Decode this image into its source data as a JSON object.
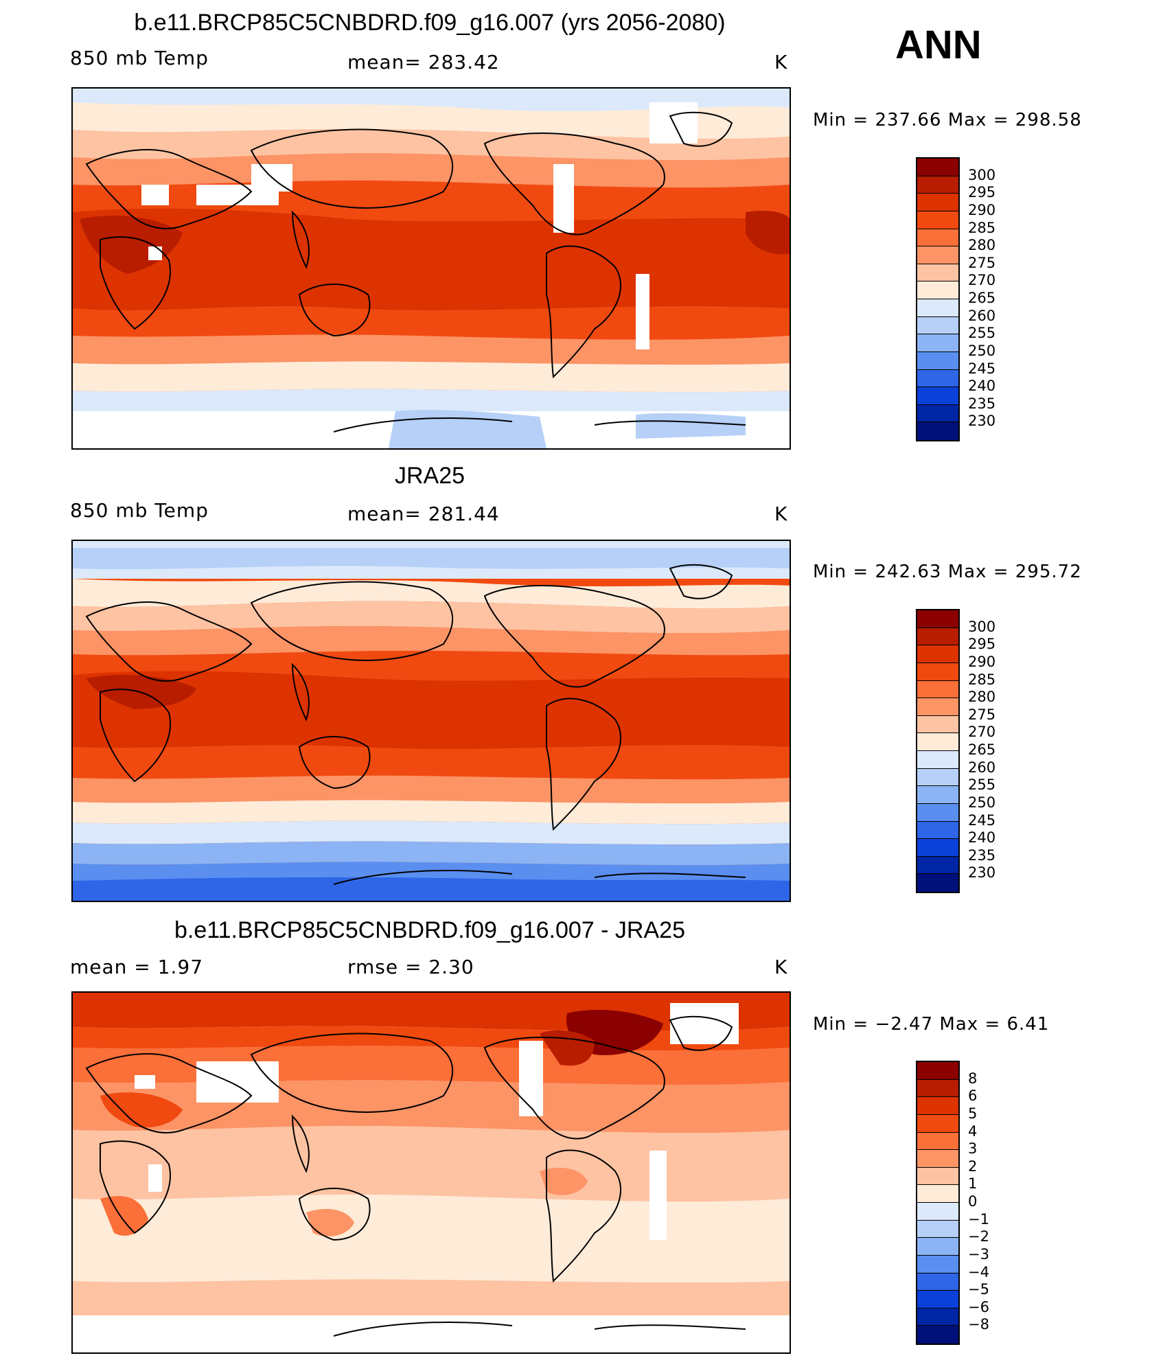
{
  "header": {
    "season": "ANN"
  },
  "panels": [
    {
      "title": "b.e11.BRCP85C5CNBDRD.f09_g16.007 (yrs 2056-2080)",
      "left_label": "850 mb Temp",
      "center_label": "mean=  283.42",
      "units": "K",
      "minmax": "Min  =  237.66  Max  =  298.58",
      "colorbar": "abs"
    },
    {
      "title": "JRA25",
      "left_label": "850 mb Temp",
      "center_label": "mean=  281.44",
      "units": "K",
      "minmax": "Min  =  242.63  Max  =  295.72",
      "colorbar": "abs"
    },
    {
      "title": "b.e11.BRCP85C5CNBDRD.f09_g16.007 - JRA25",
      "left_label": "mean  =     1.97",
      "center_label": "rmse  =     2.30",
      "units": "K",
      "minmax": "Min  =    −2.47  Max  =     6.41",
      "colorbar": "diff"
    }
  ],
  "colorbars": {
    "abs": {
      "labels": [
        "300",
        "295",
        "290",
        "285",
        "280",
        "275",
        "270",
        "265",
        "260",
        "255",
        "250",
        "245",
        "240",
        "235",
        "230"
      ],
      "colors": [
        "#8b0000",
        "#b81d00",
        "#dd3300",
        "#f04a10",
        "#fb6f38",
        "#fc9466",
        "#fdc3a3",
        "#feebd8",
        "#dbe9fb",
        "#b6d0f7",
        "#8cb4f4",
        "#5a8ff0",
        "#2f66e8",
        "#0b41d8",
        "#0026a6",
        "#00107a"
      ]
    },
    "diff": {
      "labels": [
        "8",
        "6",
        "5",
        "4",
        "3",
        "2",
        "1",
        "0",
        "−1",
        "−2",
        "−3",
        "−4",
        "−5",
        "−6",
        "−8"
      ],
      "colors": [
        "#8b0000",
        "#b81d00",
        "#dd3300",
        "#f04a10",
        "#fb6f38",
        "#fc9466",
        "#fdc3a3",
        "#feebd8",
        "#dbe9fb",
        "#b6d0f7",
        "#8cb4f4",
        "#5a8ff0",
        "#2f66e8",
        "#0b41d8",
        "#0026a6",
        "#00107a"
      ]
    }
  }
}
